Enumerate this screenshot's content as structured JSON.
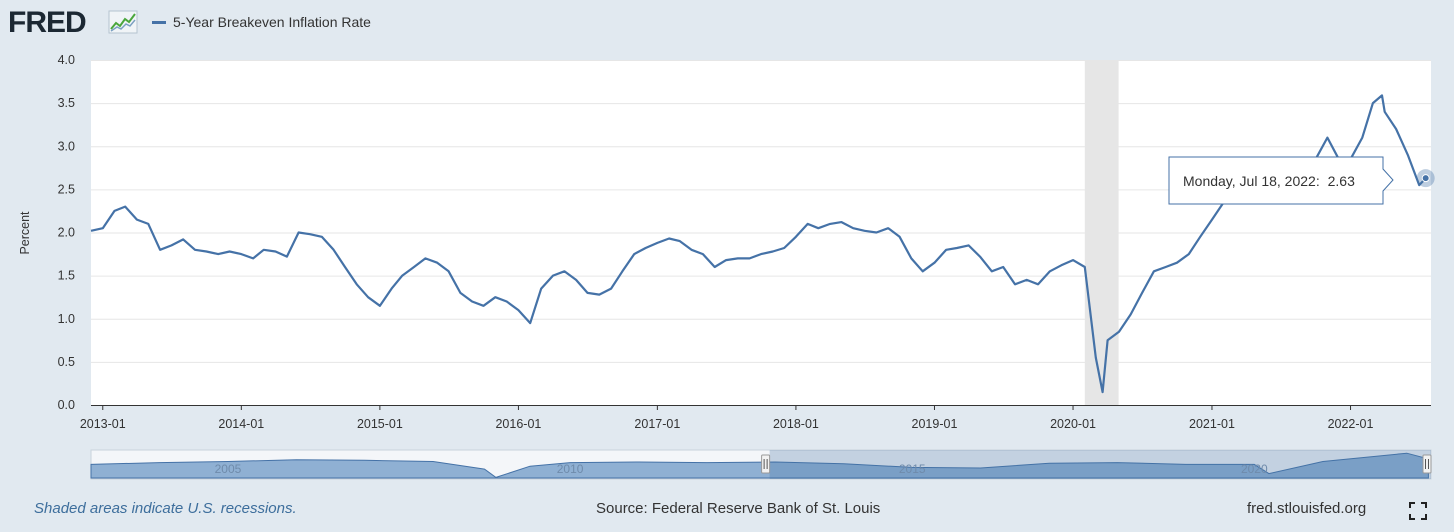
{
  "header": {
    "logo_text": "FRED",
    "logo_icon": "fred-chart-icon",
    "legend_label": "5-Year Breakeven Inflation Rate",
    "series_color": "#4572a7"
  },
  "tooltip": {
    "date_label": "Monday, Jul 18, 2022:",
    "value_label": "2.63"
  },
  "navigator": {
    "labels": [
      "2005",
      "2010",
      "2015",
      "2020"
    ]
  },
  "footer": {
    "note": "Shaded areas indicate U.S. recessions.",
    "source": "Source: Federal Reserve Bank of St. Louis",
    "url": "fred.stlouisfed.org",
    "fullscreen_icon": "fullscreen-icon"
  },
  "chart_data": {
    "type": "line",
    "ylabel": "Percent",
    "xlabel": "",
    "ylim": [
      0,
      4.0
    ],
    "xlim": [
      "2012-12-01",
      "2022-08-01"
    ],
    "yticks": [
      "0.0",
      "0.5",
      "1.0",
      "1.5",
      "2.0",
      "2.5",
      "3.0",
      "3.5",
      "4.0"
    ],
    "xticks": [
      "2013-01",
      "2014-01",
      "2015-01",
      "2016-01",
      "2017-01",
      "2018-01",
      "2019-01",
      "2020-01",
      "2021-01",
      "2022-01"
    ],
    "grid": true,
    "recession_band": [
      "2020-02-01",
      "2020-04-30"
    ],
    "recession_color": "#e6e6e6",
    "series": [
      {
        "name": "5-Year Breakeven Inflation Rate",
        "points": [
          [
            "2012-12-01",
            2.02
          ],
          [
            "2013-01-01",
            2.05
          ],
          [
            "2013-02-01",
            2.25
          ],
          [
            "2013-03-01",
            2.3
          ],
          [
            "2013-04-01",
            2.15
          ],
          [
            "2013-05-01",
            2.1
          ],
          [
            "2013-06-01",
            1.8
          ],
          [
            "2013-07-01",
            1.85
          ],
          [
            "2013-08-01",
            1.92
          ],
          [
            "2013-09-01",
            1.8
          ],
          [
            "2013-10-01",
            1.78
          ],
          [
            "2013-11-01",
            1.75
          ],
          [
            "2013-12-01",
            1.78
          ],
          [
            "2014-01-01",
            1.75
          ],
          [
            "2014-02-01",
            1.7
          ],
          [
            "2014-03-01",
            1.8
          ],
          [
            "2014-04-01",
            1.78
          ],
          [
            "2014-05-01",
            1.72
          ],
          [
            "2014-06-01",
            2.0
          ],
          [
            "2014-07-01",
            1.98
          ],
          [
            "2014-08-01",
            1.95
          ],
          [
            "2014-09-01",
            1.8
          ],
          [
            "2014-10-01",
            1.6
          ],
          [
            "2014-11-01",
            1.4
          ],
          [
            "2014-12-01",
            1.25
          ],
          [
            "2015-01-01",
            1.15
          ],
          [
            "2015-02-01",
            1.35
          ],
          [
            "2015-03-01",
            1.5
          ],
          [
            "2015-04-01",
            1.6
          ],
          [
            "2015-05-01",
            1.7
          ],
          [
            "2015-06-01",
            1.65
          ],
          [
            "2015-07-01",
            1.55
          ],
          [
            "2015-08-01",
            1.3
          ],
          [
            "2015-09-01",
            1.2
          ],
          [
            "2015-10-01",
            1.15
          ],
          [
            "2015-11-01",
            1.25
          ],
          [
            "2015-12-01",
            1.2
          ],
          [
            "2016-01-01",
            1.1
          ],
          [
            "2016-02-01",
            0.95
          ],
          [
            "2016-03-01",
            1.35
          ],
          [
            "2016-04-01",
            1.5
          ],
          [
            "2016-05-01",
            1.55
          ],
          [
            "2016-06-01",
            1.45
          ],
          [
            "2016-07-01",
            1.3
          ],
          [
            "2016-08-01",
            1.28
          ],
          [
            "2016-09-01",
            1.35
          ],
          [
            "2016-10-01",
            1.55
          ],
          [
            "2016-11-01",
            1.75
          ],
          [
            "2016-12-01",
            1.82
          ],
          [
            "2017-01-01",
            1.88
          ],
          [
            "2017-02-01",
            1.93
          ],
          [
            "2017-03-01",
            1.9
          ],
          [
            "2017-04-01",
            1.8
          ],
          [
            "2017-05-01",
            1.75
          ],
          [
            "2017-06-01",
            1.6
          ],
          [
            "2017-07-01",
            1.68
          ],
          [
            "2017-08-01",
            1.7
          ],
          [
            "2017-09-01",
            1.7
          ],
          [
            "2017-10-01",
            1.75
          ],
          [
            "2017-11-01",
            1.78
          ],
          [
            "2017-12-01",
            1.82
          ],
          [
            "2018-01-01",
            1.95
          ],
          [
            "2018-02-01",
            2.1
          ],
          [
            "2018-03-01",
            2.05
          ],
          [
            "2018-04-01",
            2.1
          ],
          [
            "2018-05-01",
            2.12
          ],
          [
            "2018-06-01",
            2.05
          ],
          [
            "2018-07-01",
            2.02
          ],
          [
            "2018-08-01",
            2.0
          ],
          [
            "2018-09-01",
            2.05
          ],
          [
            "2018-10-01",
            1.95
          ],
          [
            "2018-11-01",
            1.7
          ],
          [
            "2018-12-01",
            1.55
          ],
          [
            "2019-01-01",
            1.65
          ],
          [
            "2019-02-01",
            1.8
          ],
          [
            "2019-03-01",
            1.82
          ],
          [
            "2019-04-01",
            1.85
          ],
          [
            "2019-05-01",
            1.72
          ],
          [
            "2019-06-01",
            1.55
          ],
          [
            "2019-07-01",
            1.6
          ],
          [
            "2019-08-01",
            1.4
          ],
          [
            "2019-09-01",
            1.45
          ],
          [
            "2019-10-01",
            1.4
          ],
          [
            "2019-11-01",
            1.55
          ],
          [
            "2019-12-01",
            1.62
          ],
          [
            "2020-01-01",
            1.68
          ],
          [
            "2020-02-01",
            1.6
          ],
          [
            "2020-03-01",
            0.55
          ],
          [
            "2020-03-19",
            0.15
          ],
          [
            "2020-04-01",
            0.75
          ],
          [
            "2020-05-01",
            0.85
          ],
          [
            "2020-06-01",
            1.05
          ],
          [
            "2020-07-01",
            1.3
          ],
          [
            "2020-08-01",
            1.55
          ],
          [
            "2020-09-01",
            1.6
          ],
          [
            "2020-10-01",
            1.65
          ],
          [
            "2020-11-01",
            1.75
          ],
          [
            "2020-12-01",
            1.95
          ],
          [
            "2021-01-01",
            2.15
          ],
          [
            "2021-02-01",
            2.35
          ],
          [
            "2021-03-01",
            2.5
          ],
          [
            "2021-04-01",
            2.6
          ],
          [
            "2021-05-01",
            2.7
          ],
          [
            "2021-06-01",
            2.55
          ],
          [
            "2021-07-01",
            2.5
          ],
          [
            "2021-08-01",
            2.45
          ],
          [
            "2021-09-01",
            2.55
          ],
          [
            "2021-10-01",
            2.85
          ],
          [
            "2021-11-01",
            3.1
          ],
          [
            "2021-12-01",
            2.85
          ],
          [
            "2022-01-01",
            2.85
          ],
          [
            "2022-02-01",
            3.1
          ],
          [
            "2022-03-01",
            3.5
          ],
          [
            "2022-03-25",
            3.59
          ],
          [
            "2022-04-01",
            3.4
          ],
          [
            "2022-05-01",
            3.2
          ],
          [
            "2022-06-01",
            2.9
          ],
          [
            "2022-07-01",
            2.55
          ],
          [
            "2022-07-18",
            2.63
          ]
        ]
      }
    ],
    "navigator_series": [
      [
        "2003-01-01",
        1.7
      ],
      [
        "2004-01-01",
        2.0
      ],
      [
        "2005-01-01",
        2.2
      ],
      [
        "2006-01-01",
        2.5
      ],
      [
        "2007-01-01",
        2.4
      ],
      [
        "2008-01-01",
        2.2
      ],
      [
        "2008-10-01",
        0.9
      ],
      [
        "2008-12-01",
        -0.5
      ],
      [
        "2009-06-01",
        1.4
      ],
      [
        "2010-01-01",
        2.0
      ],
      [
        "2011-01-01",
        2.1
      ],
      [
        "2012-01-01",
        2.0
      ],
      [
        "2013-01-01",
        2.1
      ],
      [
        "2014-01-01",
        1.8
      ],
      [
        "2015-01-01",
        1.2
      ],
      [
        "2016-01-01",
        1.1
      ],
      [
        "2017-01-01",
        1.9
      ],
      [
        "2018-01-01",
        2.0
      ],
      [
        "2019-01-01",
        1.7
      ],
      [
        "2020-01-01",
        1.7
      ],
      [
        "2020-03-19",
        0.15
      ],
      [
        "2021-01-01",
        2.2
      ],
      [
        "2022-03-25",
        3.59
      ],
      [
        "2022-07-18",
        2.63
      ]
    ],
    "navigator_xlim": [
      "2003-01-01",
      "2022-08-01"
    ],
    "navigator_selected": [
      "2012-12-01",
      "2022-08-01"
    ]
  }
}
